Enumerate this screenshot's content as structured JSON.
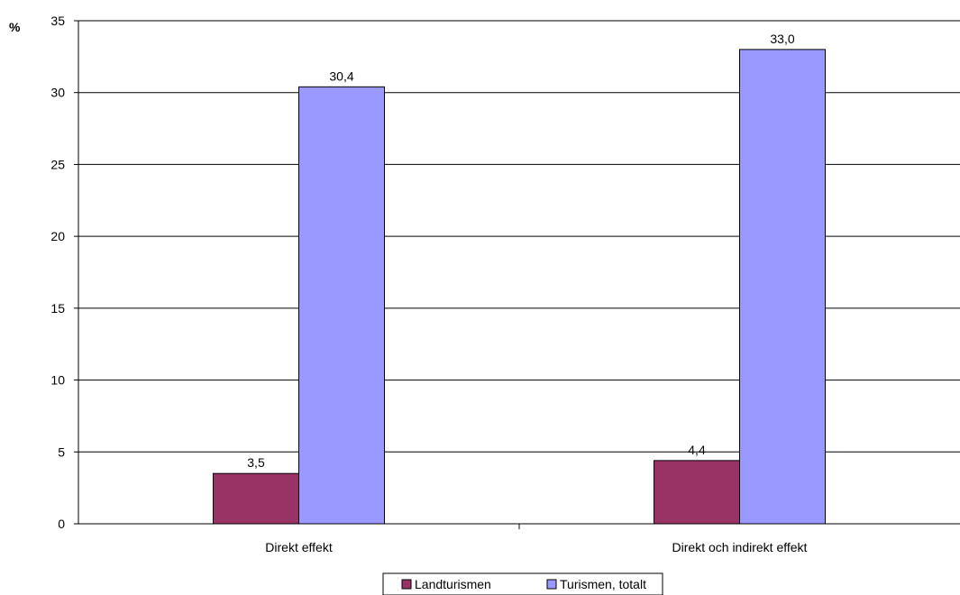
{
  "chart_data": {
    "type": "bar",
    "categories": [
      "Direkt effekt",
      "Direkt och indirekt effekt"
    ],
    "series": [
      {
        "name": "Landturismen",
        "values": [
          3.5,
          4.4
        ],
        "labels": [
          "3,5",
          "4,4"
        ],
        "color": "#993366"
      },
      {
        "name": "Turismen, totalt",
        "values": [
          30.4,
          33.0
        ],
        "labels": [
          "30,4",
          "33,0"
        ],
        "color": "#9999FF"
      }
    ],
    "ylabel": "%",
    "ylim": [
      0,
      35
    ],
    "yticks": [
      0,
      5,
      10,
      15,
      20,
      25,
      30,
      35
    ],
    "grid": true,
    "legend": "bottom-center"
  }
}
